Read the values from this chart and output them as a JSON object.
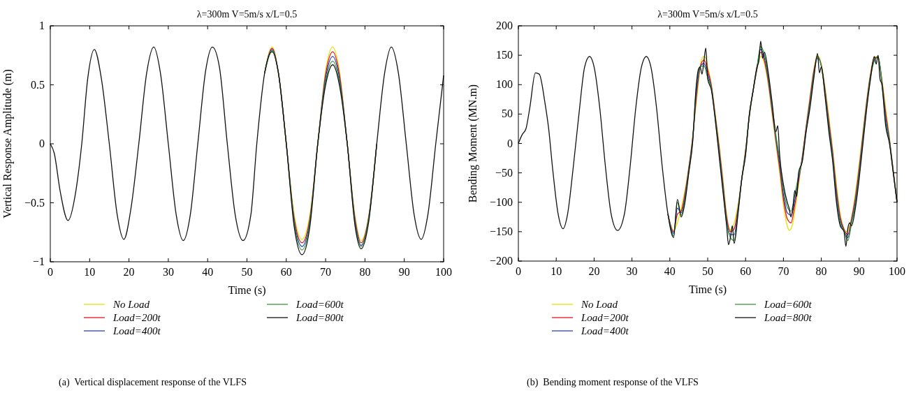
{
  "chart_data": [
    {
      "type": "line",
      "title": "λ=300m V=5m/s x/L=0.5",
      "xlabel": "Time (s)",
      "ylabel": "Vertical Response Amplitude (m)",
      "annotations": [
        "(a)  Vertical displacement response of the VLFS"
      ],
      "x": [
        0,
        1,
        2.5,
        4.5,
        6.5,
        8,
        9.5,
        11.2,
        13,
        15,
        17,
        18.7,
        20.5,
        22.5,
        24.5,
        26.3,
        28,
        30,
        32,
        33.8,
        35.6,
        37.5,
        39.5,
        41.2,
        43,
        45,
        47,
        49,
        51,
        52.5,
        54.5,
        56.4,
        58,
        60,
        62,
        64,
        66,
        68,
        70,
        71.8,
        73.5,
        75.5,
        77.5,
        79,
        81,
        83,
        85,
        86.7,
        88.5,
        90.5,
        92.5,
        94.3,
        96,
        98,
        100
      ],
      "series": [
        {
          "name": "No Load",
          "color": "#e8e000",
          "values": [
            null,
            null,
            null,
            null,
            null,
            null,
            null,
            null,
            null,
            null,
            null,
            null,
            null,
            null,
            null,
            null,
            null,
            null,
            null,
            null,
            null,
            null,
            null,
            null,
            null,
            null,
            null,
            null,
            null,
            null,
            0.6,
            0.82,
            0.6,
            0,
            -0.6,
            -0.81,
            -0.6,
            0,
            0.62,
            0.82,
            0.62,
            0,
            -0.62,
            -0.82,
            -0.6,
            0,
            null,
            null,
            null,
            null,
            null,
            null,
            null,
            null,
            null
          ]
        },
        {
          "name": "Load=200t",
          "color": "#e8141c",
          "values": [
            null,
            null,
            null,
            null,
            null,
            null,
            null,
            null,
            null,
            null,
            null,
            null,
            null,
            null,
            null,
            null,
            null,
            null,
            null,
            null,
            null,
            null,
            null,
            null,
            null,
            null,
            null,
            null,
            null,
            null,
            0.6,
            0.81,
            0.6,
            0,
            -0.63,
            -0.84,
            -0.63,
            0,
            0.59,
            0.78,
            0.59,
            0,
            -0.64,
            -0.84,
            -0.61,
            0,
            null,
            null,
            null,
            null,
            null,
            null,
            null,
            null,
            null
          ]
        },
        {
          "name": "Load=400t",
          "color": "#2a3ec8",
          "values": [
            null,
            null,
            null,
            null,
            null,
            null,
            null,
            null,
            null,
            null,
            null,
            null,
            null,
            null,
            null,
            null,
            null,
            null,
            null,
            null,
            null,
            null,
            null,
            null,
            null,
            null,
            null,
            null,
            null,
            null,
            0.6,
            0.8,
            0.6,
            0,
            -0.65,
            -0.87,
            -0.65,
            0,
            0.56,
            0.74,
            0.56,
            0,
            -0.66,
            -0.86,
            -0.62,
            0,
            null,
            null,
            null,
            null,
            null,
            null,
            null,
            null,
            null
          ]
        },
        {
          "name": "Load=600t",
          "color": "#3a9a3a",
          "values": [
            null,
            null,
            null,
            null,
            null,
            null,
            null,
            null,
            null,
            null,
            null,
            null,
            null,
            null,
            null,
            null,
            null,
            null,
            null,
            null,
            null,
            null,
            null,
            null,
            null,
            null,
            null,
            null,
            null,
            null,
            0.6,
            0.79,
            0.6,
            0,
            -0.67,
            -0.9,
            -0.67,
            0,
            0.53,
            0.7,
            0.53,
            0,
            -0.68,
            -0.87,
            -0.63,
            0,
            null,
            null,
            null,
            null,
            null,
            null,
            null,
            null,
            null
          ]
        },
        {
          "name": "Load=800t",
          "color": "#111111",
          "values": [
            0,
            -0.08,
            -0.4,
            -0.65,
            -0.4,
            0,
            0.55,
            0.8,
            0.55,
            0,
            -0.6,
            -0.81,
            -0.55,
            0,
            0.6,
            0.82,
            0.6,
            0,
            -0.6,
            -0.82,
            -0.6,
            0,
            0.62,
            0.82,
            0.65,
            0,
            -0.6,
            -0.82,
            -0.6,
            0,
            0.6,
            0.78,
            0.6,
            0,
            -0.7,
            -0.94,
            -0.7,
            0,
            0.5,
            0.67,
            0.5,
            0,
            -0.7,
            -0.89,
            -0.65,
            0,
            0.6,
            0.82,
            0.6,
            0,
            -0.6,
            -0.81,
            -0.6,
            0,
            0.58
          ]
        }
      ],
      "xlim": [
        0,
        100
      ],
      "xticks": [
        0,
        10,
        20,
        30,
        40,
        50,
        60,
        70,
        80,
        90,
        100
      ],
      "ylim": [
        -1,
        1
      ],
      "yticks": [
        {
          "value": -1,
          "label": "−1"
        },
        {
          "value": -0.5,
          "label": "−0.5"
        },
        0,
        0.5,
        1
      ],
      "legend": "bottom"
    },
    {
      "type": "line",
      "title": "λ=300m V=5m/s x/L=0.5",
      "xlabel": "Time (s)",
      "ylabel": "Bending Moment (MN.m)",
      "annotations": [
        "(b)  Bending moment response of the VLFS"
      ],
      "series": [
        {
          "name": "No Load",
          "color": "#e8e000",
          "x": [
            39.5,
            41,
            42,
            43,
            44,
            45,
            46,
            47,
            47.5,
            48,
            48.5,
            49,
            49.5,
            50,
            51,
            52,
            53,
            54,
            55,
            55.5,
            56,
            56.5,
            57,
            58,
            59,
            60,
            61,
            62,
            63,
            63.5,
            64,
            64.5,
            65,
            66,
            67,
            68,
            68.5,
            69,
            70,
            71,
            71.5,
            72,
            72.5,
            73,
            73.5,
            74,
            75,
            76,
            77,
            78,
            79,
            79.5,
            80,
            81,
            82,
            83,
            84,
            85,
            86,
            86.5,
            87,
            87.5,
            88,
            89,
            90,
            91,
            92,
            93,
            94,
            94.5,
            95,
            95.5,
            96,
            97,
            98,
            99,
            100
          ],
          "values": [
            -120,
            -148,
            -135,
            -110,
            -80,
            -40,
            10,
            70,
            100,
            130,
            145,
            148,
            145,
            130,
            100,
            50,
            0,
            -60,
            -120,
            -140,
            -148,
            -145,
            -135,
            -105,
            -60,
            -10,
            45,
            90,
            125,
            140,
            148,
            145,
            135,
            100,
            50,
            0,
            -25,
            -50,
            -105,
            -140,
            -148,
            -145,
            -135,
            -115,
            -95,
            -70,
            -20,
            30,
            80,
            125,
            150,
            145,
            135,
            95,
            45,
            -10,
            -70,
            -120,
            -145,
            -150,
            -148,
            -140,
            -125,
            -85,
            -35,
            20,
            75,
            120,
            145,
            148,
            145,
            130,
            110,
            60,
            10,
            -45,
            -100
          ]
        },
        {
          "name": "Load=200t",
          "color": "#e8141c",
          "x": [
            39.5,
            41,
            42,
            43,
            44,
            45,
            46,
            47,
            48,
            49,
            50,
            51,
            52,
            53,
            54,
            55,
            56,
            57,
            58,
            59,
            60,
            61,
            62,
            63,
            64,
            65,
            66,
            67,
            68,
            69,
            70,
            71,
            72,
            73,
            74,
            75,
            76,
            77,
            78,
            79,
            80,
            81,
            82,
            83,
            84,
            85,
            86,
            87,
            88,
            89,
            90,
            91,
            92,
            93,
            94,
            95,
            96,
            97,
            98,
            99,
            100
          ],
          "values": [
            -120,
            -150,
            -120,
            -115,
            -85,
            -42,
            8,
            78,
            130,
            142,
            125,
            97,
            47,
            -5,
            -65,
            -125,
            -150,
            -145,
            -110,
            -60,
            -12,
            46,
            90,
            126,
            155,
            140,
            105,
            55,
            5,
            -42,
            -95,
            -128,
            -135,
            -105,
            -65,
            -22,
            28,
            75,
            122,
            148,
            133,
            91,
            38,
            -15,
            -78,
            -125,
            -146,
            -155,
            -128,
            -92,
            -42,
            15,
            71,
            117,
            146,
            146,
            107,
            52,
            7,
            -46,
            -100
          ]
        },
        {
          "name": "Load=400t",
          "color": "#2a3ec8",
          "x": [
            39.5,
            41,
            42,
            43,
            44,
            45,
            46,
            47,
            48,
            49,
            50,
            51,
            52,
            53,
            54,
            55,
            56,
            57,
            58,
            59,
            60,
            61,
            62,
            63,
            64,
            65,
            66,
            67,
            68,
            69,
            70,
            71,
            72,
            73,
            74,
            75,
            76,
            77,
            78,
            79,
            80,
            81,
            82,
            83,
            84,
            85,
            86,
            87,
            88,
            89,
            90,
            91,
            92,
            93,
            94,
            95,
            96,
            97,
            98,
            99,
            100
          ],
          "values": [
            -120,
            -153,
            -110,
            -118,
            -90,
            -45,
            5,
            85,
            130,
            136,
            118,
            94,
            44,
            -10,
            -70,
            -130,
            -155,
            -155,
            -113,
            -60,
            -15,
            48,
            90,
            128,
            160,
            145,
            110,
            60,
            10,
            -35,
            -87,
            -118,
            -122,
            -97,
            -60,
            -25,
            25,
            70,
            118,
            145,
            132,
            87,
            32,
            -20,
            -85,
            -130,
            -148,
            -160,
            -132,
            -98,
            -48,
            10,
            67,
            115,
            142,
            147,
            105,
            45,
            5,
            -48,
            -100
          ]
        },
        {
          "name": "Load=600t",
          "color": "#3a9a3a",
          "x": [
            39.5,
            41,
            42,
            43,
            44,
            45,
            46,
            47,
            48,
            49,
            50,
            51,
            52,
            53,
            54,
            55,
            56,
            57,
            58,
            59,
            60,
            61,
            62,
            63,
            64,
            65,
            66,
            67,
            68,
            69,
            70,
            71,
            72,
            73,
            74,
            75,
            76,
            77,
            78,
            79,
            80,
            81,
            82,
            83,
            84,
            85,
            86,
            87,
            88,
            89,
            90,
            91,
            92,
            93,
            94,
            95,
            96,
            97,
            98,
            99,
            100
          ],
          "values": [
            -120,
            -157,
            -100,
            -122,
            -95,
            -48,
            2,
            95,
            130,
            132,
            112,
            92,
            42,
            -15,
            -75,
            -135,
            -160,
            -165,
            -117,
            -60,
            -18,
            49,
            90,
            129,
            165,
            150,
            115,
            65,
            15,
            -27,
            -78,
            -108,
            -115,
            -88,
            -55,
            -28,
            22,
            65,
            114,
            148,
            131,
            84,
            26,
            -25,
            -93,
            -135,
            -149,
            -165,
            -136,
            -104,
            -54,
            5,
            63,
            112,
            140,
            148,
            102,
            37,
            2,
            -49,
            -100
          ]
        },
        {
          "name": "Load=800t",
          "color": "#111111",
          "x": [
            0,
            1,
            2,
            3,
            4.5,
            5.5,
            7,
            8,
            9,
            10.5,
            11.8,
            13,
            14.5,
            16,
            17.5,
            18.8,
            20,
            21.5,
            23,
            24.5,
            26.2,
            28,
            29.5,
            31,
            32.5,
            33.8,
            35,
            36.5,
            38,
            39.5,
            41,
            42,
            43,
            44,
            45,
            46,
            47,
            47.5,
            48,
            48.5,
            49,
            49.5,
            50,
            51,
            52,
            53,
            54,
            55,
            55.5,
            56,
            56.5,
            57,
            58,
            59,
            60,
            61,
            62,
            63,
            63.5,
            64,
            64.5,
            65,
            66,
            67,
            68,
            68.5,
            69,
            70,
            71,
            71.5,
            72,
            72.5,
            73,
            73.5,
            74,
            75,
            76,
            77,
            78,
            79,
            79.5,
            80,
            81,
            82,
            83,
            84,
            85,
            86,
            86.5,
            87,
            87.5,
            88,
            89,
            90,
            91,
            92,
            93,
            94,
            94.5,
            95,
            95.5,
            96,
            97,
            98,
            99,
            100
          ],
          "values": [
            0,
            15,
            25,
            60,
            120,
            118,
            70,
            25,
            -40,
            -120,
            -145,
            -120,
            -40,
            50,
            130,
            148,
            130,
            60,
            -40,
            -120,
            -148,
            -120,
            -40,
            60,
            130,
            148,
            130,
            60,
            -40,
            -120,
            -160,
            -95,
            -125,
            -100,
            -50,
            0,
            100,
            125,
            130,
            118,
            140,
            162,
            110,
            90,
            40,
            -20,
            -80,
            -140,
            -172,
            -160,
            -140,
            -170,
            -120,
            -60,
            -20,
            50,
            90,
            130,
            140,
            174,
            145,
            155,
            120,
            70,
            20,
            30,
            -20,
            -70,
            -100,
            -110,
            -125,
            -110,
            -80,
            -90,
            -50,
            -30,
            20,
            60,
            110,
            153,
            120,
            130,
            80,
            20,
            -30,
            -100,
            -140,
            -150,
            -175,
            -145,
            -135,
            -140,
            -110,
            -60,
            0,
            60,
            110,
            148,
            135,
            150,
            110,
            100,
            30,
            0,
            -50,
            -100
          ]
        }
      ],
      "xlim": [
        0,
        100
      ],
      "xticks": [
        0,
        10,
        20,
        30,
        40,
        50,
        60,
        70,
        80,
        90,
        100
      ],
      "ylim": [
        -200,
        200
      ],
      "yticks": [
        {
          "value": -200,
          "label": "−200"
        },
        {
          "value": -150,
          "label": "−150"
        },
        {
          "value": -100,
          "label": "−100"
        },
        {
          "value": -50,
          "label": "−50"
        },
        0,
        50,
        100,
        150,
        200
      ],
      "legend": "bottom"
    }
  ]
}
